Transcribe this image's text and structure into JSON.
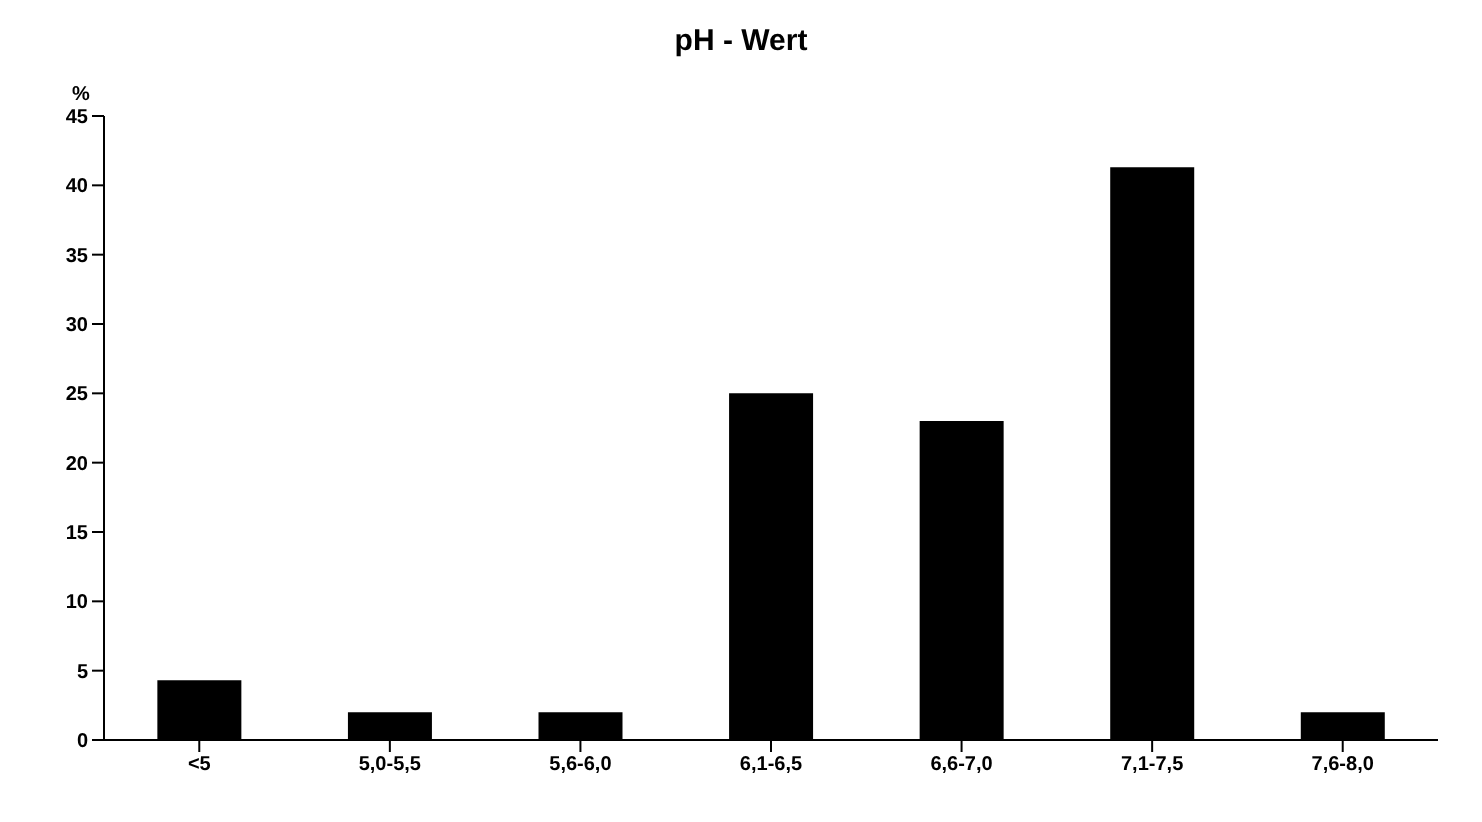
{
  "chart_data": {
    "type": "bar",
    "title": "pH - Wert",
    "ylabel": "%",
    "categories": [
      "<5",
      "5,0-5,5",
      "5,6-6,0",
      "6,1-6,5",
      "6,6-7,0",
      "7,1-7,5",
      "7,6-8,0"
    ],
    "values": [
      4.3,
      2,
      2,
      25,
      23,
      41.3,
      2
    ],
    "color": "#000000",
    "ylim": [
      0,
      45
    ],
    "yticks": [
      0,
      5,
      10,
      15,
      20,
      25,
      30,
      35,
      40,
      45
    ],
    "grid": false
  }
}
